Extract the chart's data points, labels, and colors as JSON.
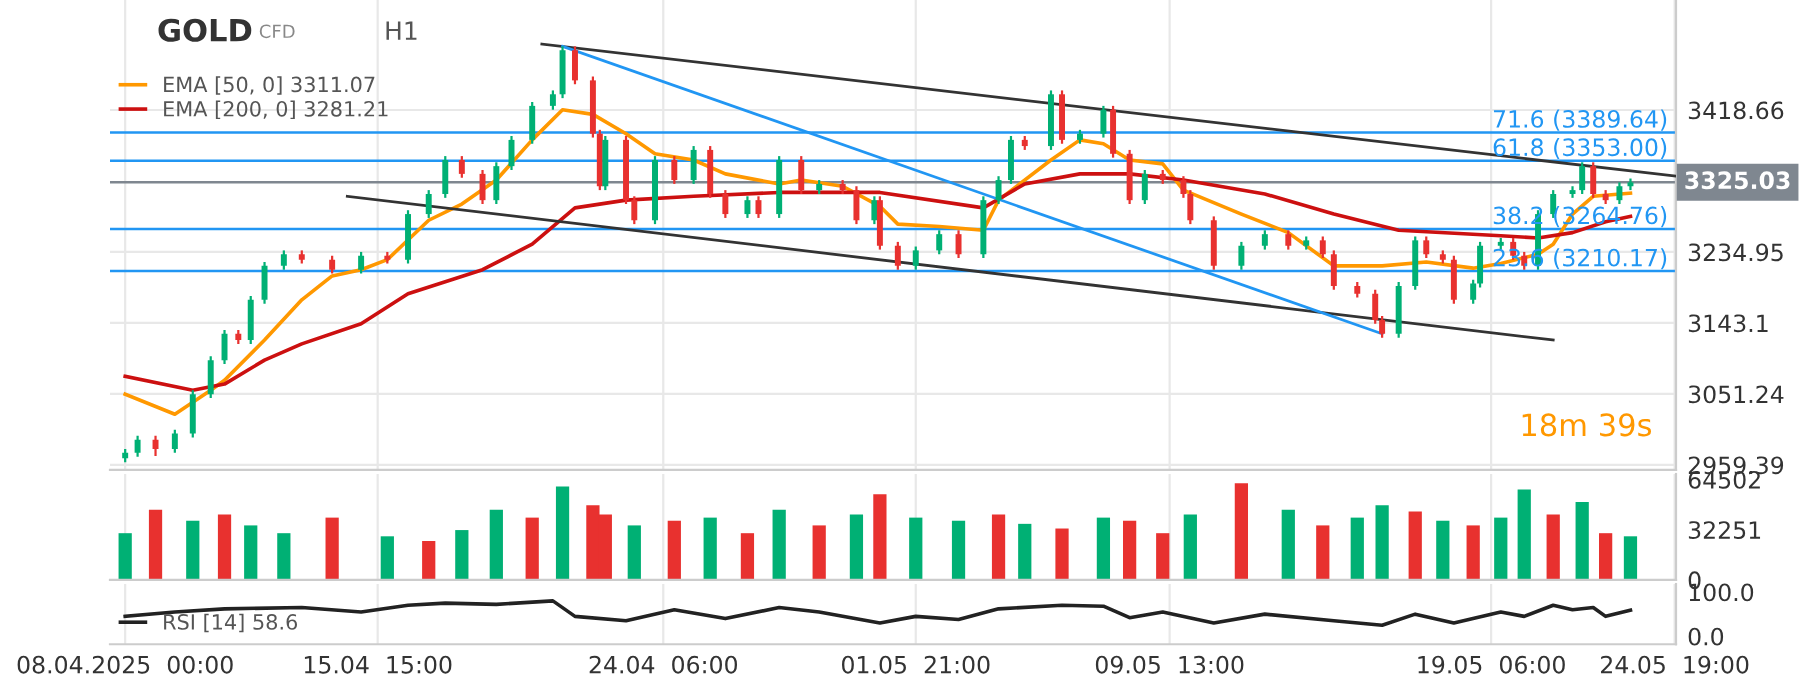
{
  "chart_data": [
    {
      "type": "candlestick",
      "x": [
        "2025-04-08T00:00",
        "2025-04-08T09:00",
        "2025-04-08T22:00",
        "2025-04-09T12:00",
        "2025-04-10T01:00",
        "2025-04-10T14:00",
        "2025-04-11T00:00",
        "2025-04-11T10:00",
        "2025-04-11T19:00",
        "2025-04-12T05:00",
        "2025-04-12T19:00",
        "2025-04-13T08:00",
        "2025-04-14T06:00",
        "2025-04-15T03:00",
        "2025-04-15T22:00",
        "2025-04-16T13:00",
        "2025-04-17T04:00",
        "2025-04-17T16:00",
        "2025-04-18T04:00",
        "2025-04-18T19:00",
        "2025-04-19T05:00",
        "2025-04-19T16:00",
        "2025-04-20T07:00",
        "2025-04-20T22:00",
        "2025-04-21T05:00",
        "2025-04-21T14:00",
        "2025-04-22T03:00",
        "2025-04-22T08:00",
        "2025-04-22T12:00",
        "2025-04-23T03:00",
        "2025-04-23T09:00",
        "2025-04-24T00:00",
        "2025-04-24T14:00",
        "2025-04-25T04:00",
        "2025-04-25T16:00",
        "2025-04-26T03:00",
        "2025-04-26T19:00",
        "2025-04-27T03:00",
        "2025-04-27T18:00",
        "2025-04-28T10:00",
        "2025-04-28T23:00",
        "2025-04-29T16:00",
        "2025-04-30T02:00",
        "2025-04-30T15:00",
        "2025-04-30T19:00",
        "2025-05-01T08:00",
        "2025-05-01T21:00",
        "2025-05-02T14:00",
        "2025-05-03T04:00",
        "2025-05-03T22:00",
        "2025-05-04T09:00",
        "2025-05-04T18:00",
        "2025-05-05T04:00",
        "2025-05-05T23:00",
        "2025-05-06T07:00",
        "2025-05-06T20:00",
        "2025-05-07T13:00",
        "2025-05-07T20:00",
        "2025-05-08T08:00",
        "2025-05-08T19:00",
        "2025-05-09T08:00",
        "2025-05-09T23:00",
        "2025-05-10T04:00",
        "2025-05-10T21:00",
        "2025-05-11T17:00",
        "2025-05-12T10:00",
        "2025-05-13T03:00",
        "2025-05-13T16:00",
        "2025-05-14T04:00",
        "2025-05-14T12:00",
        "2025-05-15T05:00",
        "2025-05-15T18:00",
        "2025-05-15T23:00",
        "2025-05-16T11:00",
        "2025-05-16T23:00",
        "2025-05-17T07:00",
        "2025-05-17T19:00",
        "2025-05-18T03:00",
        "2025-05-18T17:00",
        "2025-05-18T22:00",
        "2025-05-19T13:00",
        "2025-05-19T22:00",
        "2025-05-20T06:00",
        "2025-05-20T16:00",
        "2025-05-21T03:00",
        "2025-05-21T17:00",
        "2025-05-22T00:00",
        "2025-05-22T08:00",
        "2025-05-22T17:00",
        "2025-05-23T03:00",
        "2025-05-23T11:00"
      ],
      "ohlc": [
        [
          2968,
          2980,
          2963,
          2975
        ],
        [
          2975,
          2997,
          2970,
          2992
        ],
        [
          2992,
          2997,
          2971,
          2980
        ],
        [
          2980,
          3005,
          2975,
          3000
        ],
        [
          3000,
          3056,
          2995,
          3051
        ],
        [
          3051,
          3100,
          3046,
          3095
        ],
        [
          3095,
          3134,
          3090,
          3129
        ],
        [
          3129,
          3134,
          3116,
          3121
        ],
        [
          3121,
          3178,
          3116,
          3173
        ],
        [
          3173,
          3222,
          3168,
          3217
        ],
        [
          3217,
          3237,
          3212,
          3232
        ],
        [
          3232,
          3237,
          3220,
          3225
        ],
        [
          3225,
          3230,
          3207,
          3212
        ],
        [
          3212,
          3235,
          3207,
          3230
        ],
        [
          3230,
          3235,
          3220,
          3225
        ],
        [
          3225,
          3289,
          3220,
          3284
        ],
        [
          3284,
          3315,
          3279,
          3310
        ],
        [
          3310,
          3359,
          3305,
          3354
        ],
        [
          3354,
          3359,
          3331,
          3336
        ],
        [
          3336,
          3341,
          3297,
          3302
        ],
        [
          3302,
          3351,
          3297,
          3346
        ],
        [
          3346,
          3385,
          3341,
          3380
        ],
        [
          3380,
          3429,
          3375,
          3424
        ],
        [
          3424,
          3444,
          3419,
          3439
        ],
        [
          3439,
          3501,
          3434,
          3496
        ],
        [
          3496,
          3501,
          3452,
          3457
        ],
        [
          3457,
          3462,
          3383,
          3388
        ],
        [
          3388,
          3393,
          3315,
          3320
        ],
        [
          3320,
          3385,
          3315,
          3380
        ],
        [
          3380,
          3385,
          3297,
          3302
        ],
        [
          3302,
          3307,
          3271,
          3276
        ],
        [
          3276,
          3359,
          3271,
          3354
        ],
        [
          3354,
          3359,
          3323,
          3328
        ],
        [
          3328,
          3372,
          3323,
          3367
        ],
        [
          3367,
          3372,
          3305,
          3310
        ],
        [
          3310,
          3315,
          3279,
          3284
        ],
        [
          3284,
          3307,
          3279,
          3302
        ],
        [
          3302,
          3307,
          3279,
          3284
        ],
        [
          3284,
          3359,
          3279,
          3354
        ],
        [
          3354,
          3359,
          3310,
          3315
        ],
        [
          3315,
          3328,
          3310,
          3323
        ],
        [
          3323,
          3328,
          3310,
          3315
        ],
        [
          3315,
          3320,
          3271,
          3276
        ],
        [
          3276,
          3307,
          3271,
          3302
        ],
        [
          3302,
          3307,
          3238,
          3243
        ],
        [
          3243,
          3248,
          3212,
          3217
        ],
        [
          3217,
          3242,
          3212,
          3237
        ],
        [
          3237,
          3263,
          3232,
          3258
        ],
        [
          3258,
          3263,
          3227,
          3232
        ],
        [
          3232,
          3307,
          3227,
          3302
        ],
        [
          3302,
          3333,
          3297,
          3328
        ],
        [
          3328,
          3385,
          3323,
          3380
        ],
        [
          3380,
          3385,
          3367,
          3372
        ],
        [
          3372,
          3444,
          3367,
          3439
        ],
        [
          3439,
          3444,
          3375,
          3380
        ],
        [
          3380,
          3393,
          3375,
          3388
        ],
        [
          3388,
          3424,
          3383,
          3419
        ],
        [
          3419,
          3424,
          3357,
          3362
        ],
        [
          3362,
          3367,
          3297,
          3302
        ],
        [
          3302,
          3341,
          3297,
          3336
        ],
        [
          3336,
          3341,
          3323,
          3328
        ],
        [
          3328,
          3333,
          3305,
          3310
        ],
        [
          3310,
          3315,
          3271,
          3276
        ],
        [
          3276,
          3281,
          3212,
          3217
        ],
        [
          3217,
          3248,
          3212,
          3243
        ],
        [
          3243,
          3263,
          3238,
          3258
        ],
        [
          3258,
          3263,
          3238,
          3243
        ],
        [
          3243,
          3255,
          3238,
          3250
        ],
        [
          3250,
          3255,
          3227,
          3232
        ],
        [
          3232,
          3237,
          3186,
          3191
        ],
        [
          3191,
          3196,
          3176,
          3181
        ],
        [
          3181,
          3186,
          3142,
          3147
        ],
        [
          3147,
          3152,
          3124,
          3129
        ],
        [
          3129,
          3196,
          3124,
          3191
        ],
        [
          3191,
          3255,
          3186,
          3250
        ],
        [
          3250,
          3255,
          3227,
          3232
        ],
        [
          3232,
          3237,
          3220,
          3225
        ],
        [
          3225,
          3230,
          3168,
          3173
        ],
        [
          3173,
          3199,
          3168,
          3194
        ],
        [
          3194,
          3248,
          3189,
          3243
        ],
        [
          3243,
          3253,
          3238,
          3248
        ],
        [
          3248,
          3253,
          3225,
          3230
        ],
        [
          3230,
          3235,
          3212,
          3217
        ],
        [
          3217,
          3289,
          3212,
          3284
        ],
        [
          3284,
          3315,
          3279,
          3310
        ],
        [
          3310,
          3320,
          3305,
          3315
        ],
        [
          3315,
          3351,
          3310,
          3346
        ],
        [
          3346,
          3351,
          3305,
          3310
        ],
        [
          3310,
          3315,
          3297,
          3302
        ],
        [
          3302,
          3325,
          3297,
          3320
        ],
        [
          3320,
          3330,
          3315,
          3325
        ]
      ],
      "colors": [
        "#00b074",
        "#00b074",
        "#e8312f",
        "#00b074",
        "#00b074",
        "#00b074",
        "#00b074",
        "#e8312f",
        "#00b074",
        "#00b074",
        "#00b074",
        "#e8312f",
        "#e8312f",
        "#00b074",
        "#e8312f",
        "#00b074",
        "#00b074",
        "#00b074",
        "#e8312f",
        "#e8312f",
        "#00b074",
        "#00b074",
        "#00b074",
        "#00b074",
        "#00b074",
        "#e8312f",
        "#e8312f",
        "#e8312f",
        "#00b074",
        "#e8312f",
        "#e8312f",
        "#00b074",
        "#e8312f",
        "#00b074",
        "#e8312f",
        "#e8312f",
        "#00b074",
        "#e8312f",
        "#00b074",
        "#e8312f",
        "#00b074",
        "#e8312f",
        "#e8312f",
        "#00b074",
        "#e8312f",
        "#e8312f",
        "#00b074",
        "#00b074",
        "#e8312f",
        "#00b074",
        "#00b074",
        "#00b074",
        "#e8312f",
        "#00b074",
        "#e8312f",
        "#00b074",
        "#00b074",
        "#e8312f",
        "#e8312f",
        "#00b074",
        "#e8312f",
        "#e8312f",
        "#e8312f",
        "#e8312f",
        "#00b074",
        "#00b074",
        "#e8312f",
        "#00b074",
        "#e8312f",
        "#e8312f",
        "#e8312f",
        "#e8312f",
        "#e8312f",
        "#00b074",
        "#00b074",
        "#e8312f",
        "#e8312f",
        "#e8312f",
        "#00b074",
        "#00b074",
        "#00b074",
        "#e8312f",
        "#e8312f",
        "#00b074",
        "#00b074",
        "#00b074",
        "#00b074",
        "#e8312f",
        "#e8312f",
        "#00b074",
        "#00b074"
      ],
      "series": [
        {
          "type": "line",
          "name": "EMA [50, 0] 3311.07",
          "color": "#ff9800",
          "x": [
            "2025-04-08T00:00",
            "2025-04-09T12:00",
            "2025-04-10T14:00",
            "2025-04-11T00:00",
            "2025-04-12T05:00",
            "2025-04-13T08:00",
            "2025-04-14T06:00",
            "2025-04-15T03:00",
            "2025-04-15T22:00",
            "2025-04-17T04:00",
            "2025-04-18T04:00",
            "2025-04-19T05:00",
            "2025-04-20T07:00",
            "2025-04-21T05:00",
            "2025-04-22T03:00",
            "2025-04-23T03:00",
            "2025-04-24T00:00",
            "2025-04-25T04:00",
            "2025-04-26T03:00",
            "2025-04-27T18:00",
            "2025-04-28T10:00",
            "2025-04-29T16:00",
            "2025-04-30T19:00",
            "2025-05-01T08:00",
            "2025-05-02T14:00",
            "2025-05-03T22:00",
            "2025-05-04T09:00",
            "2025-05-05T23:00",
            "2025-05-06T20:00",
            "2025-05-07T13:00",
            "2025-05-08T08:00",
            "2025-05-09T08:00",
            "2025-05-09T23:00",
            "2025-05-11T17:00",
            "2025-05-13T03:00",
            "2025-05-14T12:00",
            "2025-05-15T23:00",
            "2025-05-17T07:00",
            "2025-05-18T17:00",
            "2025-05-19T13:00",
            "2025-05-20T16:00",
            "2025-05-21T03:00",
            "2025-05-21T17:00",
            "2025-05-22T08:00",
            "2025-05-23T11:00"
          ],
          "values": [
            3051,
            3025,
            3056,
            3069,
            3121,
            3173,
            3204,
            3212,
            3225,
            3276,
            3297,
            3328,
            3380,
            3419,
            3413,
            3388,
            3362,
            3354,
            3336,
            3323,
            3328,
            3320,
            3294,
            3271,
            3268,
            3263,
            3302,
            3354,
            3380,
            3375,
            3354,
            3349,
            3315,
            3284,
            3260,
            3217,
            3217,
            3222,
            3214,
            3220,
            3232,
            3245,
            3284,
            3307,
            3311
          ]
        },
        {
          "type": "line",
          "name": "EMA [200, 0] 3281.21",
          "color": "#cc1010",
          "x": [
            "2025-04-08T00:00",
            "2025-04-10T01:00",
            "2025-04-11T00:00",
            "2025-04-12T05:00",
            "2025-04-13T08:00",
            "2025-04-15T03:00",
            "2025-04-16T13:00",
            "2025-04-18T19:00",
            "2025-04-20T07:00",
            "2025-04-21T14:00",
            "2025-04-23T03:00",
            "2025-04-25T04:00",
            "2025-04-27T18:00",
            "2025-04-30T19:00",
            "2025-05-03T22:00",
            "2025-05-05T04:00",
            "2025-05-06T20:00",
            "2025-05-08T08:00",
            "2025-05-09T23:00",
            "2025-05-12T10:00",
            "2025-05-14T12:00",
            "2025-05-16T11:00",
            "2025-05-19T13:00",
            "2025-05-20T16:00",
            "2025-05-21T17:00",
            "2025-05-22T17:00",
            "2025-05-23T11:00"
          ],
          "values": [
            3074,
            3056,
            3064,
            3095,
            3116,
            3142,
            3181,
            3212,
            3245,
            3292,
            3302,
            3307,
            3312,
            3312,
            3292,
            3323,
            3336,
            3336,
            3328,
            3310,
            3284,
            3263,
            3256,
            3253,
            3260,
            3274,
            3281
          ]
        },
        {
          "type": "line",
          "color": "#333333",
          "x": [
            "2025-04-20T14:00",
            "2025-05-24T20:00"
          ],
          "values": [
            3504,
            3333
          ]
        },
        {
          "type": "line",
          "color": "#333333",
          "x": [
            "2025-04-14T17:00",
            "2025-05-21T03:00"
          ],
          "values": [
            3307,
            3121
          ]
        },
        {
          "type": "line",
          "color": "#2196f3",
          "x": [
            "2025-04-21T05:00",
            "2025-05-15T23:00"
          ],
          "values": [
            3501,
            3129
          ]
        }
      ],
      "ref_lines": [
        {
          "axis": "y",
          "value": 3389.64,
          "label": "71.6 (3389.64)",
          "color": "#2196f3"
        },
        {
          "axis": "y",
          "value": 3353.0,
          "label": "61.8 (3353.00)",
          "color": "#2196f3"
        },
        {
          "axis": "y",
          "value": 3264.76,
          "label": "38.2 (3264.76)",
          "color": "#2196f3"
        },
        {
          "axis": "y",
          "value": 3210.17,
          "label": "23.6 (3210.17)",
          "color": "#2196f3"
        },
        {
          "axis": "y",
          "value": 3325.03,
          "label": "3325.03",
          "color": "#7f8790"
        }
      ],
      "annotations": [
        "GOLD",
        "CFD",
        "H1",
        "18m 39s"
      ],
      "xlim": [
        "2025-04-07T13:00",
        "2025-05-24T20:00"
      ],
      "ylim": [
        2953,
        3561
      ],
      "xticks": [
        {
          "value": "2025-04-08T00:00",
          "label": null
        },
        {
          "value": "2025-04-15T15:00",
          "label": null
        },
        {
          "value": "2025-04-24T06:00",
          "label": null
        },
        {
          "value": "2025-05-01T21:00",
          "label": null
        },
        {
          "value": "2025-05-09T13:00",
          "label": null
        },
        {
          "value": "2025-05-19T06:00",
          "label": null
        },
        {
          "value": "2025-05-24T19:00",
          "label": null
        }
      ],
      "yticks": [
        2959.39,
        3051.24,
        3143.1,
        3234.95,
        3418.66
      ],
      "tick_labels": "y",
      "grid": true,
      "legend": "top left"
    },
    {
      "type": "bar",
      "x": [
        "2025-04-08T00:00",
        "2025-04-08T22:00",
        "2025-04-10T01:00",
        "2025-04-11T00:00",
        "2025-04-11T19:00",
        "2025-04-12T19:00",
        "2025-04-14T06:00",
        "2025-04-15T22:00",
        "2025-04-17T04:00",
        "2025-04-18T04:00",
        "2025-04-19T05:00",
        "2025-04-20T07:00",
        "2025-04-21T05:00",
        "2025-04-22T03:00",
        "2025-04-22T12:00",
        "2025-04-23T09:00",
        "2025-04-24T14:00",
        "2025-04-25T16:00",
        "2025-04-26T19:00",
        "2025-04-27T18:00",
        "2025-04-28T23:00",
        "2025-04-30T02:00",
        "2025-04-30T19:00",
        "2025-05-01T21:00",
        "2025-05-03T04:00",
        "2025-05-04T09:00",
        "2025-05-05T04:00",
        "2025-05-06T07:00",
        "2025-05-07T13:00",
        "2025-05-08T08:00",
        "2025-05-09T08:00",
        "2025-05-10T04:00",
        "2025-05-11T17:00",
        "2025-05-13T03:00",
        "2025-05-14T04:00",
        "2025-05-15T05:00",
        "2025-05-15T23:00",
        "2025-05-16T23:00",
        "2025-05-17T19:00",
        "2025-05-18T17:00",
        "2025-05-19T13:00",
        "2025-05-20T06:00",
        "2025-05-21T03:00",
        "2025-05-22T00:00",
        "2025-05-22T17:00",
        "2025-05-23T11:00"
      ],
      "values": [
        30000,
        45000,
        38000,
        42000,
        35000,
        30000,
        40000,
        28000,
        25000,
        32000,
        45000,
        40000,
        60000,
        48000,
        42000,
        35000,
        38000,
        40000,
        30000,
        45000,
        35000,
        42000,
        55000,
        40000,
        38000,
        42000,
        36000,
        33000,
        40000,
        38000,
        30000,
        42000,
        62000,
        45000,
        35000,
        40000,
        48000,
        44000,
        38000,
        35000,
        40000,
        58000,
        42000,
        50000,
        30000,
        28000
      ],
      "colors": [
        "#00b074",
        "#e8312f",
        "#00b074",
        "#e8312f",
        "#00b074",
        "#00b074",
        "#e8312f",
        "#00b074",
        "#e8312f",
        "#00b074",
        "#00b074",
        "#e8312f",
        "#00b074",
        "#e8312f",
        "#e8312f",
        "#00b074",
        "#e8312f",
        "#00b074",
        "#e8312f",
        "#00b074",
        "#e8312f",
        "#00b074",
        "#e8312f",
        "#00b074",
        "#00b074",
        "#e8312f",
        "#00b074",
        "#e8312f",
        "#00b074",
        "#e8312f",
        "#e8312f",
        "#00b074",
        "#e8312f",
        "#00b074",
        "#e8312f",
        "#00b074",
        "#00b074",
        "#e8312f",
        "#00b074",
        "#e8312f",
        "#00b074",
        "#00b074",
        "#e8312f",
        "#00b074",
        "#e8312f",
        "#00b074"
      ],
      "xlim": [
        "2025-04-07T13:00",
        "2025-05-24T20:00"
      ],
      "ylim": [
        0,
        68000
      ],
      "yticks": [
        0,
        32251,
        64502
      ],
      "xticks": [
        {
          "value": "2025-04-08T00:00",
          "label": null
        },
        {
          "value": "2025-04-15T15:00",
          "label": null
        },
        {
          "value": "2025-04-24T06:00",
          "label": null
        },
        {
          "value": "2025-05-01T21:00",
          "label": null
        },
        {
          "value": "2025-05-09T13:00",
          "label": null
        },
        {
          "value": "2025-05-19T06:00",
          "label": null
        },
        {
          "value": "2025-05-24T19:00",
          "label": null
        }
      ],
      "tick_labels": "y",
      "grid": "x"
    },
    {
      "type": "line",
      "series": [
        {
          "name": "RSI [14] 58.6",
          "color": "#222222",
          "x": [
            "2025-04-08T00:00",
            "2025-04-09T12:00",
            "2025-04-11T00:00",
            "2025-04-13T08:00",
            "2025-04-15T03:00",
            "2025-04-16T13:00",
            "2025-04-17T16:00",
            "2025-04-19T05:00",
            "2025-04-20T22:00",
            "2025-04-21T14:00",
            "2025-04-23T03:00",
            "2025-04-24T14:00",
            "2025-04-26T03:00",
            "2025-04-27T18:00",
            "2025-04-28T23:00",
            "2025-04-30T19:00",
            "2025-05-01T21:00",
            "2025-05-03T04:00",
            "2025-05-04T09:00",
            "2025-05-06T07:00",
            "2025-05-07T13:00",
            "2025-05-08T08:00",
            "2025-05-09T08:00",
            "2025-05-10T21:00",
            "2025-05-12T10:00",
            "2025-05-14T12:00",
            "2025-05-15T23:00",
            "2025-05-16T23:00",
            "2025-05-18T03:00",
            "2025-05-19T13:00",
            "2025-05-20T06:00",
            "2025-05-21T03:00",
            "2025-05-21T17:00",
            "2025-05-22T08:00",
            "2025-05-22T17:00",
            "2025-05-23T11:00"
          ],
          "values": [
            45,
            55,
            62,
            65,
            55,
            70,
            75,
            72,
            80,
            45,
            35,
            60,
            40,
            65,
            55,
            30,
            45,
            38,
            62,
            70,
            68,
            42,
            55,
            30,
            50,
            35,
            25,
            50,
            30,
            55,
            45,
            70,
            60,
            65,
            45,
            59
          ]
        }
      ],
      "xlim": [
        "2025-04-07T13:00",
        "2025-05-24T20:00"
      ],
      "ylim": [
        -18,
        118
      ],
      "yticks": [
        {
          "value": 0,
          "label": "0.0"
        },
        {
          "value": 100,
          "label": "100.0"
        }
      ],
      "xticks": [
        {
          "value": "2025-04-08T00:00",
          "label": "08.04.2025  00:00"
        },
        {
          "value": "2025-04-15T15:00",
          "label": "15.04  15:00"
        },
        {
          "value": "2025-04-24T06:00",
          "label": "24.04  06:00"
        },
        {
          "value": "2025-05-01T21:00",
          "label": "01.05  21:00"
        },
        {
          "value": "2025-05-09T13:00",
          "label": "09.05  13:00"
        },
        {
          "value": "2025-05-19T06:00",
          "label": "19.05  06:00"
        },
        {
          "value": "2025-05-24T19:00",
          "label": "24.05  19:00"
        }
      ],
      "grid": "x",
      "legend": "bottom left"
    }
  ]
}
